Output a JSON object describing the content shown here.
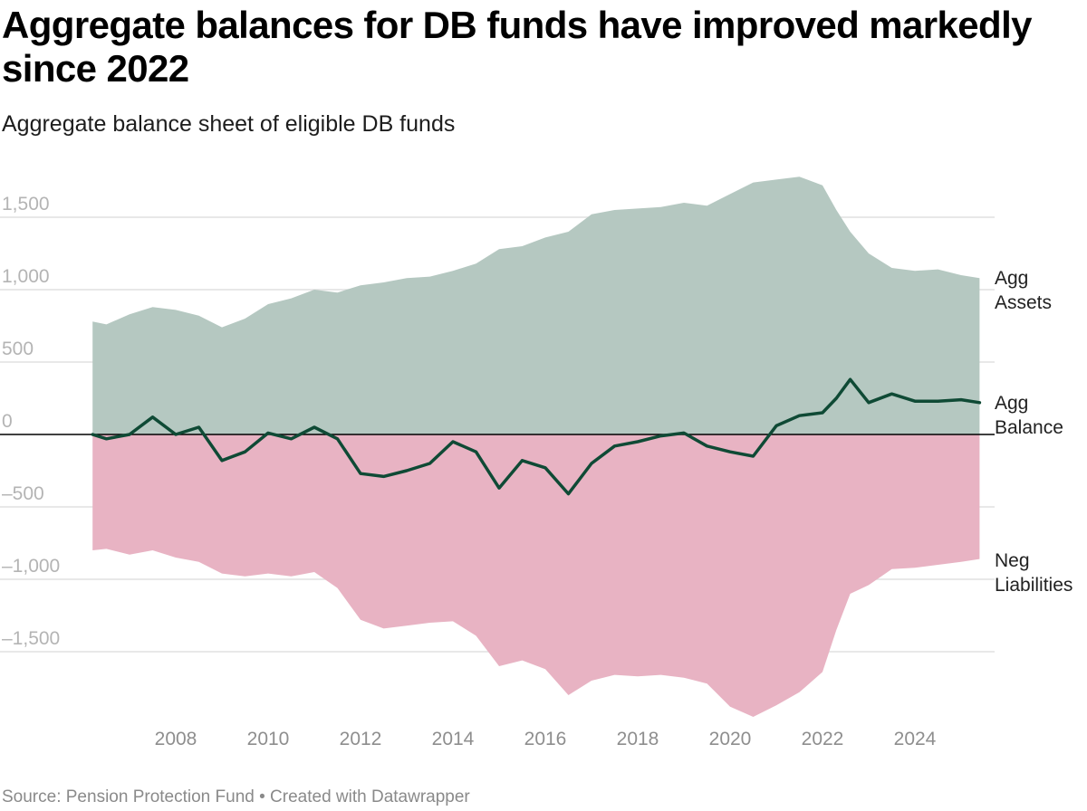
{
  "title": "Aggregate balances for DB funds have improved markedly since 2022",
  "subtitle": "Aggregate balance sheet of eligible DB funds",
  "source": "Source: Pension Protection Fund • Created with Datawrapper",
  "colors": {
    "assets_fill": "#b5c8c1",
    "liabilities_fill": "#e8b3c3",
    "balance_line": "#0f4a35",
    "gridline": "#e1e1e1",
    "zero_line": "#000000"
  },
  "chart_data": {
    "type": "area",
    "title": "Aggregate balances for DB funds have improved markedly since 2022",
    "subtitle": "Aggregate balance sheet of eligible DB funds",
    "xlabel": "",
    "ylabel": "",
    "x_range": [
      2006.2,
      2025.4
    ],
    "ylim": [
      -2000,
      1850
    ],
    "y_ticks": [
      1500,
      1000,
      500,
      0,
      -500,
      -1000,
      -1500
    ],
    "y_tick_labels": [
      "1,500",
      "1,000",
      "500",
      "0",
      "–500",
      "–1,000",
      "–1,500"
    ],
    "x_ticks": [
      2008,
      2010,
      2012,
      2014,
      2016,
      2018,
      2020,
      2022,
      2024
    ],
    "x_tick_labels": [
      "2008",
      "2010",
      "2012",
      "2014",
      "2016",
      "2018",
      "2020",
      "2022",
      "2024"
    ],
    "grid": true,
    "series": [
      {
        "name": "Agg Assets",
        "label_lines": [
          "Agg",
          "Assets"
        ],
        "kind": "area",
        "x": [
          2006.2,
          2006.5,
          2007.0,
          2007.5,
          2008.0,
          2008.5,
          2009.0,
          2009.5,
          2010.0,
          2010.5,
          2011.0,
          2011.5,
          2012.0,
          2012.5,
          2013.0,
          2013.5,
          2014.0,
          2014.5,
          2015.0,
          2015.5,
          2016.0,
          2016.5,
          2017.0,
          2017.5,
          2018.0,
          2018.5,
          2019.0,
          2019.5,
          2020.0,
          2020.5,
          2021.0,
          2021.5,
          2022.0,
          2022.3,
          2022.6,
          2023.0,
          2023.5,
          2024.0,
          2024.5,
          2025.0,
          2025.4
        ],
        "values": [
          780,
          760,
          830,
          880,
          860,
          820,
          740,
          800,
          900,
          940,
          1000,
          980,
          1030,
          1050,
          1080,
          1090,
          1130,
          1180,
          1280,
          1300,
          1360,
          1400,
          1520,
          1550,
          1560,
          1570,
          1600,
          1580,
          1660,
          1740,
          1760,
          1780,
          1720,
          1550,
          1400,
          1250,
          1150,
          1130,
          1140,
          1100,
          1080
        ]
      },
      {
        "name": "Neg Liabilities",
        "label_lines": [
          "Neg",
          "Liabilities"
        ],
        "kind": "area",
        "x": [
          2006.2,
          2006.5,
          2007.0,
          2007.5,
          2008.0,
          2008.5,
          2009.0,
          2009.5,
          2010.0,
          2010.5,
          2011.0,
          2011.5,
          2012.0,
          2012.5,
          2013.0,
          2013.5,
          2014.0,
          2014.5,
          2015.0,
          2015.5,
          2016.0,
          2016.5,
          2017.0,
          2017.5,
          2018.0,
          2018.5,
          2019.0,
          2019.5,
          2020.0,
          2020.5,
          2021.0,
          2021.5,
          2022.0,
          2022.3,
          2022.6,
          2023.0,
          2023.5,
          2024.0,
          2024.5,
          2025.0,
          2025.4
        ],
        "values": [
          -800,
          -790,
          -830,
          -800,
          -850,
          -880,
          -960,
          -980,
          -960,
          -980,
          -950,
          -1060,
          -1280,
          -1340,
          -1320,
          -1300,
          -1290,
          -1390,
          -1600,
          -1560,
          -1620,
          -1800,
          -1700,
          -1660,
          -1670,
          -1660,
          -1680,
          -1720,
          -1880,
          -1950,
          -1870,
          -1780,
          -1640,
          -1350,
          -1100,
          -1040,
          -930,
          -920,
          -900,
          -880,
          -860
        ]
      },
      {
        "name": "Agg Balance",
        "label_lines": [
          "Agg",
          "Balance"
        ],
        "kind": "line",
        "x": [
          2006.2,
          2006.5,
          2007.0,
          2007.5,
          2008.0,
          2008.5,
          2009.0,
          2009.5,
          2010.0,
          2010.5,
          2011.0,
          2011.5,
          2012.0,
          2012.5,
          2013.0,
          2013.5,
          2014.0,
          2014.5,
          2015.0,
          2015.5,
          2016.0,
          2016.5,
          2017.0,
          2017.5,
          2018.0,
          2018.5,
          2019.0,
          2019.5,
          2020.0,
          2020.5,
          2021.0,
          2021.5,
          2022.0,
          2022.3,
          2022.6,
          2023.0,
          2023.5,
          2024.0,
          2024.5,
          2025.0,
          2025.4
        ],
        "values": [
          0,
          -30,
          0,
          120,
          0,
          50,
          -180,
          -120,
          10,
          -30,
          50,
          -30,
          -270,
          -290,
          -250,
          -200,
          -50,
          -120,
          -370,
          -180,
          -230,
          -410,
          -200,
          -80,
          -50,
          -10,
          10,
          -80,
          -120,
          -150,
          60,
          130,
          150,
          250,
          380,
          220,
          280,
          230,
          230,
          240,
          220
        ]
      }
    ]
  }
}
